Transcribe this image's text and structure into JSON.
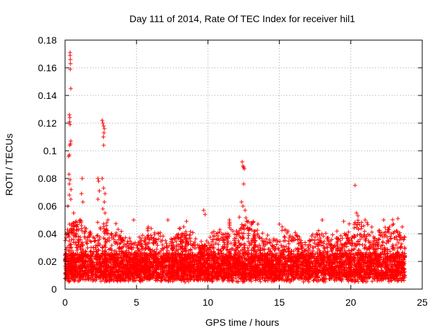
{
  "chart_data": {
    "type": "scatter",
    "title": "Day 111 of 2014, Rate Of TEC Index for receiver hil1",
    "xlabel": "GPS time / hours",
    "ylabel": "ROTI / TECUs",
    "xlim": [
      0,
      25
    ],
    "ylim": [
      0,
      0.18
    ],
    "x_ticks": [
      0,
      5,
      10,
      15,
      20,
      25
    ],
    "y_ticks": [
      0,
      0.02,
      0.04,
      0.06,
      0.08,
      0.1,
      0.12,
      0.14,
      0.16,
      0.18
    ],
    "x_tick_labels": [
      "0",
      "5",
      "10",
      "15",
      "20",
      "25"
    ],
    "y_tick_labels": [
      "0",
      "0.02",
      "0.04",
      "0.06",
      "0.08",
      "0.1",
      "0.12",
      "0.14",
      "0.16",
      "0.18"
    ],
    "grid": true,
    "marker": "+",
    "series": [
      {
        "name": "ROTI",
        "color": "#ff0000",
        "notes": "dense band of points between ~0.005 and ~0.04 across 0–23.8 h",
        "band": {
          "x_start": 0.0,
          "x_end": 23.8,
          "y_min": 0.005,
          "y_max": 0.04
        },
        "outliers": [
          {
            "x": 0.35,
            "y": 0.171
          },
          {
            "x": 0.35,
            "y": 0.169
          },
          {
            "x": 0.37,
            "y": 0.166
          },
          {
            "x": 0.38,
            "y": 0.163
          },
          {
            "x": 0.36,
            "y": 0.159
          },
          {
            "x": 0.4,
            "y": 0.145
          },
          {
            "x": 0.3,
            "y": 0.126
          },
          {
            "x": 0.33,
            "y": 0.124
          },
          {
            "x": 0.32,
            "y": 0.121
          },
          {
            "x": 0.35,
            "y": 0.119
          },
          {
            "x": 0.4,
            "y": 0.107
          },
          {
            "x": 0.38,
            "y": 0.105
          },
          {
            "x": 0.33,
            "y": 0.104
          },
          {
            "x": 0.3,
            "y": 0.097
          },
          {
            "x": 0.25,
            "y": 0.096
          },
          {
            "x": 0.28,
            "y": 0.083
          },
          {
            "x": 0.35,
            "y": 0.079
          },
          {
            "x": 0.3,
            "y": 0.076
          },
          {
            "x": 0.42,
            "y": 0.072
          },
          {
            "x": 0.3,
            "y": 0.068
          },
          {
            "x": 0.4,
            "y": 0.065
          },
          {
            "x": 0.6,
            "y": 0.055
          },
          {
            "x": 0.2,
            "y": 0.06
          },
          {
            "x": 1.2,
            "y": 0.08
          },
          {
            "x": 1.15,
            "y": 0.069
          },
          {
            "x": 1.25,
            "y": 0.063
          },
          {
            "x": 2.3,
            "y": 0.08
          },
          {
            "x": 2.35,
            "y": 0.078
          },
          {
            "x": 2.4,
            "y": 0.071
          },
          {
            "x": 2.3,
            "y": 0.065
          },
          {
            "x": 2.6,
            "y": 0.122
          },
          {
            "x": 2.65,
            "y": 0.12
          },
          {
            "x": 2.7,
            "y": 0.118
          },
          {
            "x": 2.75,
            "y": 0.116
          },
          {
            "x": 2.72,
            "y": 0.113
          },
          {
            "x": 2.68,
            "y": 0.11
          },
          {
            "x": 2.7,
            "y": 0.104
          },
          {
            "x": 2.6,
            "y": 0.08
          },
          {
            "x": 2.7,
            "y": 0.073
          },
          {
            "x": 2.8,
            "y": 0.069
          },
          {
            "x": 2.75,
            "y": 0.063
          },
          {
            "x": 2.65,
            "y": 0.058
          },
          {
            "x": 2.8,
            "y": 0.055
          },
          {
            "x": 3.0,
            "y": 0.05
          },
          {
            "x": 12.4,
            "y": 0.092
          },
          {
            "x": 12.45,
            "y": 0.089
          },
          {
            "x": 12.5,
            "y": 0.088
          },
          {
            "x": 12.55,
            "y": 0.087
          },
          {
            "x": 12.5,
            "y": 0.076
          },
          {
            "x": 12.35,
            "y": 0.063
          },
          {
            "x": 12.45,
            "y": 0.06
          },
          {
            "x": 12.6,
            "y": 0.057
          },
          {
            "x": 12.2,
            "y": 0.052
          },
          {
            "x": 20.3,
            "y": 0.075
          },
          {
            "x": 20.4,
            "y": 0.055
          },
          {
            "x": 20.5,
            "y": 0.053
          },
          {
            "x": 9.7,
            "y": 0.057
          },
          {
            "x": 9.8,
            "y": 0.054
          },
          {
            "x": 15.0,
            "y": 0.047
          },
          {
            "x": 15.2,
            "y": 0.045
          },
          {
            "x": 18.0,
            "y": 0.05
          },
          {
            "x": 19.5,
            "y": 0.049
          },
          {
            "x": 21.0,
            "y": 0.05
          },
          {
            "x": 22.3,
            "y": 0.05
          },
          {
            "x": 23.3,
            "y": 0.051
          },
          {
            "x": 23.6,
            "y": 0.045
          },
          {
            "x": 7.2,
            "y": 0.05
          },
          {
            "x": 8.5,
            "y": 0.049
          },
          {
            "x": 4.8,
            "y": 0.05
          },
          {
            "x": 11.5,
            "y": 0.05
          },
          {
            "x": 13.5,
            "y": 0.047
          }
        ]
      }
    ]
  }
}
